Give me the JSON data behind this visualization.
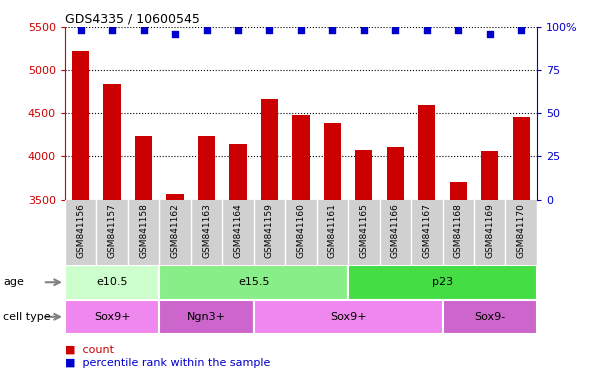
{
  "title": "GDS4335 / 10600545",
  "samples": [
    "GSM841156",
    "GSM841157",
    "GSM841158",
    "GSM841162",
    "GSM841163",
    "GSM841164",
    "GSM841159",
    "GSM841160",
    "GSM841161",
    "GSM841165",
    "GSM841166",
    "GSM841167",
    "GSM841168",
    "GSM841169",
    "GSM841170"
  ],
  "counts": [
    5220,
    4840,
    4240,
    3560,
    4240,
    4150,
    4670,
    4480,
    4390,
    4080,
    4110,
    4600,
    3700,
    4060,
    4460
  ],
  "percentile": [
    98,
    98,
    98,
    96,
    98,
    98,
    98,
    98,
    98,
    98,
    98,
    98,
    98,
    96,
    98
  ],
  "ylim_left": [
    3500,
    5500
  ],
  "ylim_right": [
    0,
    100
  ],
  "yticks_left": [
    3500,
    4000,
    4500,
    5000,
    5500
  ],
  "yticks_right": [
    0,
    25,
    50,
    75,
    100
  ],
  "bar_color": "#cc0000",
  "dot_color": "#0000cc",
  "age_groups": [
    {
      "label": "e10.5",
      "start": 0,
      "end": 3,
      "color": "#ccffcc"
    },
    {
      "label": "e15.5",
      "start": 3,
      "end": 9,
      "color": "#88ee88"
    },
    {
      "label": "p23",
      "start": 9,
      "end": 15,
      "color": "#44dd44"
    }
  ],
  "cell_groups": [
    {
      "label": "Sox9+",
      "start": 0,
      "end": 3,
      "color": "#ee88ee"
    },
    {
      "label": "Ngn3+",
      "start": 3,
      "end": 6,
      "color": "#cc66cc"
    },
    {
      "label": "Sox9+",
      "start": 6,
      "end": 12,
      "color": "#ee88ee"
    },
    {
      "label": "Sox9-",
      "start": 12,
      "end": 15,
      "color": "#cc66cc"
    }
  ],
  "tick_bg_color": "#d0d0d0",
  "legend_count_color": "#cc0000",
  "legend_dot_color": "#0000cc"
}
